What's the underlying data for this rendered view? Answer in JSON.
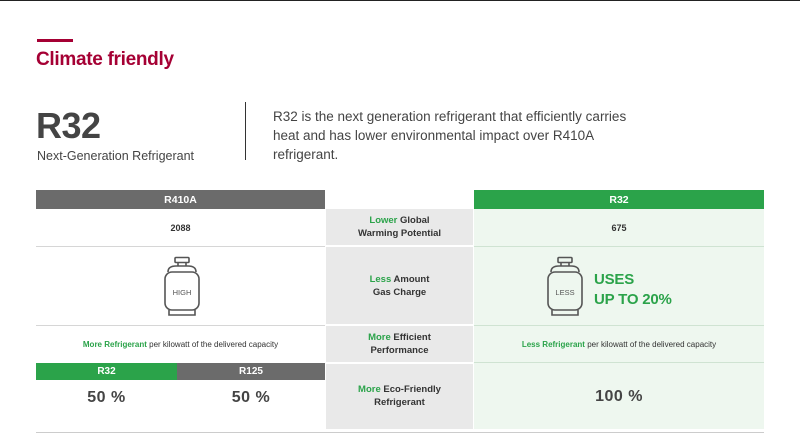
{
  "section": {
    "title": "Climate friendly",
    "accent_color": "#a50034"
  },
  "hero": {
    "name": "R32",
    "subtitle": "Next-Generation Refrigerant",
    "description": "R32 is the next generation refrigerant that efficiently carries heat and has lower environmental impact over R410A refrigerant."
  },
  "comparison": {
    "left_header": "R410A",
    "right_header": "R32",
    "colors": {
      "gray": "#6b6b6b",
      "green": "#2ba34a",
      "mid_bg": "#e9e9e9",
      "right_bg": "#eef7ef"
    },
    "rows": [
      {
        "label_highlight": "Lower",
        "label_rest_1": " Global",
        "label_line2": "Warming  Potential",
        "left_value": "2088",
        "right_value": "675"
      },
      {
        "label_highlight": "Less",
        "label_rest_1": " Amount",
        "label_line2": "Gas Charge",
        "left_icon": "gas-cylinder-icon",
        "left_icon_text": "HIGH",
        "right_icon": "gas-cylinder-icon",
        "right_icon_text": "LESS",
        "right_uses_line1": "USES",
        "right_uses_line2": "UP TO 20%"
      },
      {
        "label_highlight": "More",
        "label_rest_1": " Efficient",
        "label_line2": "Performance",
        "left_desc_highlight": "More Refrigerant",
        "left_desc_rest": " per kilowatt  of the delivered capacity",
        "right_desc_highlight": "Less Refrigerant",
        "right_desc_rest": " per kilowatt of the delivered capacity"
      },
      {
        "label_highlight": "More",
        "label_rest_1": " Eco-Friendly",
        "label_line2": "Refrigerant",
        "left_sub_header_1": "R32",
        "left_sub_header_2": "R125",
        "left_pct_1": "50 %",
        "left_pct_2": "50 %",
        "right_value": "100 %"
      }
    ]
  }
}
